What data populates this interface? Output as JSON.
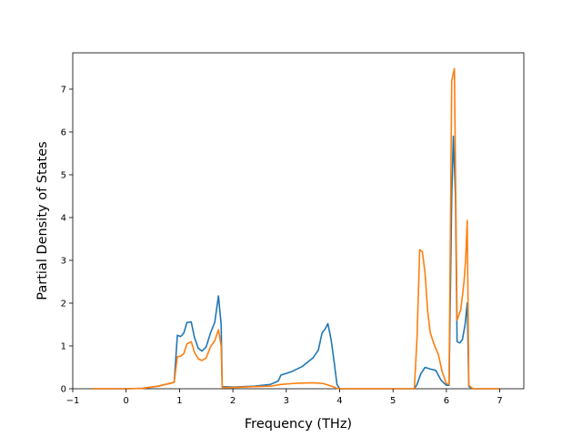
{
  "chart_data": {
    "type": "line",
    "title": "",
    "xlabel": "Frequency (THz)",
    "ylabel": "Partial Density of States",
    "xlim": [
      -1,
      7.45
    ],
    "ylim": [
      0,
      7.85
    ],
    "xticks": [
      -1,
      0,
      1,
      2,
      3,
      4,
      5,
      6,
      7
    ],
    "yticks": [
      0,
      1,
      2,
      3,
      4,
      5,
      6,
      7
    ],
    "grid": false,
    "colors": [
      "#1f77b4",
      "#ff7f0e"
    ],
    "series": [
      {
        "points": [
          [
            -0.65,
            0
          ],
          [
            0,
            0
          ],
          [
            0.3,
            0.01
          ],
          [
            0.6,
            0.06
          ],
          [
            0.9,
            0.15
          ],
          [
            0.96,
            1.25
          ],
          [
            1.02,
            1.22
          ],
          [
            1.08,
            1.3
          ],
          [
            1.14,
            1.55
          ],
          [
            1.22,
            1.56
          ],
          [
            1.28,
            1.2
          ],
          [
            1.35,
            0.95
          ],
          [
            1.42,
            0.88
          ],
          [
            1.5,
            0.98
          ],
          [
            1.58,
            1.3
          ],
          [
            1.66,
            1.55
          ],
          [
            1.73,
            2.17
          ],
          [
            1.78,
            1.5
          ],
          [
            1.8,
            0.05
          ],
          [
            2.0,
            0.04
          ],
          [
            2.4,
            0.06
          ],
          [
            2.7,
            0.1
          ],
          [
            2.85,
            0.18
          ],
          [
            2.9,
            0.32
          ],
          [
            3.1,
            0.4
          ],
          [
            3.3,
            0.52
          ],
          [
            3.5,
            0.72
          ],
          [
            3.6,
            0.9
          ],
          [
            3.67,
            1.3
          ],
          [
            3.73,
            1.4
          ],
          [
            3.78,
            1.52
          ],
          [
            3.84,
            1.15
          ],
          [
            3.9,
            0.6
          ],
          [
            3.95,
            0.1
          ],
          [
            4.0,
            0
          ],
          [
            5.0,
            0
          ],
          [
            5.4,
            0
          ],
          [
            5.45,
            0.1
          ],
          [
            5.52,
            0.35
          ],
          [
            5.6,
            0.5
          ],
          [
            5.7,
            0.46
          ],
          [
            5.8,
            0.43
          ],
          [
            5.9,
            0.2
          ],
          [
            6.0,
            0.08
          ],
          [
            6.05,
            0.08
          ],
          [
            6.1,
            4.5
          ],
          [
            6.13,
            5.9
          ],
          [
            6.17,
            4.5
          ],
          [
            6.2,
            1.1
          ],
          [
            6.25,
            1.07
          ],
          [
            6.3,
            1.15
          ],
          [
            6.35,
            1.5
          ],
          [
            6.39,
            2.0
          ],
          [
            6.42,
            0.05
          ],
          [
            6.5,
            0
          ],
          [
            7.0,
            0
          ]
        ]
      },
      {
        "points": [
          [
            -0.65,
            0
          ],
          [
            0,
            0
          ],
          [
            0.3,
            0.01
          ],
          [
            0.6,
            0.06
          ],
          [
            0.9,
            0.15
          ],
          [
            0.96,
            0.75
          ],
          [
            1.02,
            0.76
          ],
          [
            1.08,
            0.82
          ],
          [
            1.14,
            1.05
          ],
          [
            1.22,
            1.1
          ],
          [
            1.28,
            0.85
          ],
          [
            1.35,
            0.7
          ],
          [
            1.42,
            0.66
          ],
          [
            1.5,
            0.72
          ],
          [
            1.58,
            0.98
          ],
          [
            1.66,
            1.12
          ],
          [
            1.73,
            1.38
          ],
          [
            1.78,
            1.0
          ],
          [
            1.8,
            0.03
          ],
          [
            2.0,
            0.03
          ],
          [
            2.4,
            0.05
          ],
          [
            2.7,
            0.06
          ],
          [
            2.9,
            0.1
          ],
          [
            3.2,
            0.13
          ],
          [
            3.5,
            0.14
          ],
          [
            3.7,
            0.12
          ],
          [
            3.85,
            0.06
          ],
          [
            3.95,
            0.01
          ],
          [
            4.0,
            0
          ],
          [
            5.0,
            0
          ],
          [
            5.4,
            0
          ],
          [
            5.45,
            1.2
          ],
          [
            5.5,
            3.25
          ],
          [
            5.55,
            3.2
          ],
          [
            5.6,
            2.7
          ],
          [
            5.65,
            1.8
          ],
          [
            5.7,
            1.3
          ],
          [
            5.78,
            1.0
          ],
          [
            5.85,
            0.8
          ],
          [
            5.92,
            0.4
          ],
          [
            6.0,
            0.12
          ],
          [
            6.05,
            0.1
          ],
          [
            6.1,
            7.2
          ],
          [
            6.15,
            7.48
          ],
          [
            6.2,
            1.6
          ],
          [
            6.27,
            1.85
          ],
          [
            6.33,
            2.5
          ],
          [
            6.36,
            3.0
          ],
          [
            6.39,
            3.93
          ],
          [
            6.42,
            0.08
          ],
          [
            6.5,
            0
          ],
          [
            7.0,
            0
          ]
        ]
      }
    ]
  }
}
